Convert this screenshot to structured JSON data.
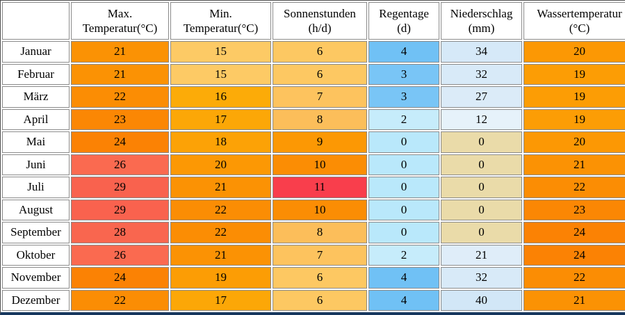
{
  "chart_data": {
    "type": "table",
    "columns": [
      {
        "line1": "",
        "line2": ""
      },
      {
        "line1": "Max.",
        "line2": "Temperatur(°C)"
      },
      {
        "line1": "Min.",
        "line2": "Temperatur(°C)"
      },
      {
        "line1": "Sonnenstunden",
        "line2": "(h/d)"
      },
      {
        "line1": "Regentage",
        "line2": "(d)"
      },
      {
        "line1": "Niederschlag",
        "line2": "(mm)"
      },
      {
        "line1": "Wassertemperatur",
        "line2": "(°C)"
      }
    ],
    "rows": [
      {
        "month": "Januar",
        "values": [
          21,
          15,
          6,
          4,
          34,
          20
        ],
        "colors": [
          "#fb9204",
          "#fdca65",
          "#fdc862",
          "#70c1f5",
          "#d6e9f8",
          "#fc9804"
        ]
      },
      {
        "month": "Februar",
        "values": [
          21,
          15,
          6,
          3,
          32,
          19
        ],
        "colors": [
          "#fb9204",
          "#fdca65",
          "#fdc862",
          "#79c5f6",
          "#d8eaf8",
          "#fc9d05"
        ]
      },
      {
        "month": "März",
        "values": [
          22,
          16,
          7,
          3,
          27,
          19
        ],
        "colors": [
          "#fb8d04",
          "#fcab08",
          "#fdc35e",
          "#79c5f6",
          "#dbebf8",
          "#fc9d05"
        ]
      },
      {
        "month": "April",
        "values": [
          23,
          17,
          8,
          2,
          12,
          19
        ],
        "colors": [
          "#fb8704",
          "#fca707",
          "#fcbe5a",
          "#c6ecfb",
          "#e6f2fa",
          "#fc9d05"
        ]
      },
      {
        "month": "Mai",
        "values": [
          24,
          18,
          9,
          0,
          0,
          20
        ],
        "colors": [
          "#fb8204",
          "#fca206",
          "#fc9804",
          "#b9e8fb",
          "#eadba9",
          "#fc9804"
        ]
      },
      {
        "month": "Juni",
        "values": [
          26,
          20,
          10,
          0,
          0,
          21
        ],
        "colors": [
          "#fa6a50",
          "#fc9804",
          "#fb8d04",
          "#b9e8fb",
          "#eadba9",
          "#fb9204"
        ]
      },
      {
        "month": "Juli",
        "values": [
          29,
          21,
          11,
          0,
          0,
          22
        ],
        "colors": [
          "#f9624e",
          "#fb9204",
          "#f93e4c",
          "#b9e8fb",
          "#eadba9",
          "#fb8d04"
        ]
      },
      {
        "month": "August",
        "values": [
          29,
          22,
          10,
          0,
          0,
          23
        ],
        "colors": [
          "#f9624e",
          "#fb8d04",
          "#fb8d04",
          "#b9e8fb",
          "#eadba9",
          "#fb8704"
        ]
      },
      {
        "month": "September",
        "values": [
          28,
          22,
          8,
          0,
          0,
          24
        ],
        "colors": [
          "#f9664f",
          "#fb8d04",
          "#fcbe5a",
          "#b9e8fb",
          "#eadba9",
          "#fb8204"
        ]
      },
      {
        "month": "Oktober",
        "values": [
          26,
          21,
          7,
          2,
          21,
          24
        ],
        "colors": [
          "#fa6a50",
          "#fb9204",
          "#fdc35e",
          "#c6ecfb",
          "#dfedf9",
          "#fb8204"
        ]
      },
      {
        "month": "November",
        "values": [
          24,
          19,
          6,
          4,
          32,
          22
        ],
        "colors": [
          "#fb8204",
          "#fc9d05",
          "#fdc862",
          "#70c1f5",
          "#d8eaf8",
          "#fb8d04"
        ]
      },
      {
        "month": "Dezember",
        "values": [
          22,
          17,
          6,
          4,
          40,
          21
        ],
        "colors": [
          "#fb8d04",
          "#fca707",
          "#fdc862",
          "#70c1f5",
          "#d2e7f7",
          "#fb9204"
        ]
      }
    ]
  },
  "colors": {
    "header_bg": "#ffffff",
    "month_bg": "#ffffff",
    "cell_border": "#8a8a8a",
    "outer_border": "#4d4d4d",
    "bottom_bar": "#17375e",
    "text": "#000000"
  }
}
